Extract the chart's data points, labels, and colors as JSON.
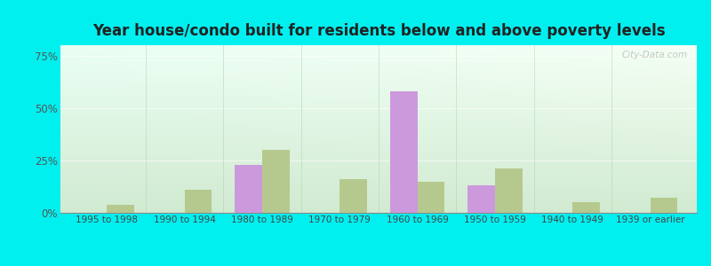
{
  "title": "Year house/condo built for residents below and above poverty levels",
  "categories": [
    "1995 to 1998",
    "1990 to 1994",
    "1980 to 1989",
    "1970 to 1979",
    "1960 to 1969",
    "1950 to 1959",
    "1940 to 1949",
    "1939 or earlier"
  ],
  "below_poverty": [
    0,
    0,
    23,
    0,
    58,
    13,
    0,
    0
  ],
  "above_poverty": [
    4,
    11,
    30,
    16,
    15,
    21,
    5,
    7
  ],
  "below_color": "#cc99dd",
  "above_color": "#b5c98e",
  "ylabel_ticks": [
    0,
    25,
    50,
    75
  ],
  "ylabel_labels": [
    "0%",
    "25%",
    "50%",
    "75%"
  ],
  "ylim": [
    0,
    80
  ],
  "bar_width": 0.35,
  "outer_bg": "#00f0f0",
  "plot_bg_topleft": "#d4ead4",
  "plot_bg_topright": "#f0f8f0",
  "plot_bg_bottom": "#ddeedd",
  "watermark": "City-Data.com",
  "title_fontsize": 12,
  "tick_fontsize": 7.5,
  "ytick_fontsize": 8.5
}
